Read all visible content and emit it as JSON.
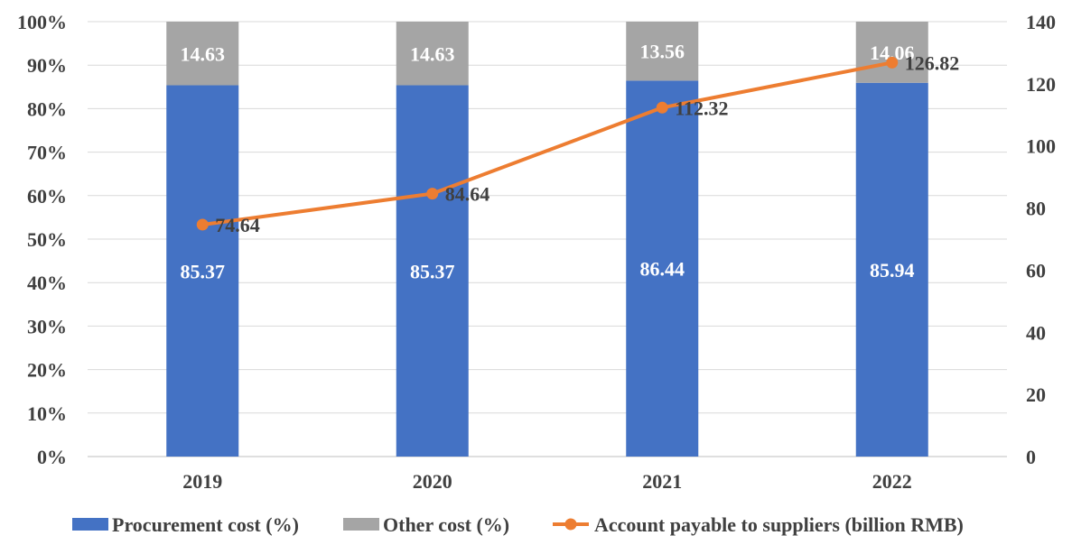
{
  "chart_data": {
    "type": "bar",
    "stacked": true,
    "categories": [
      "2019",
      "2020",
      "2021",
      "2022"
    ],
    "series": [
      {
        "name": "Procurement cost (%)",
        "kind": "bar",
        "axis": "left",
        "color": "#4472C4",
        "labelColor": "#FFFFFF",
        "values": [
          85.37,
          85.37,
          86.44,
          85.94
        ],
        "labels": [
          "85.37",
          "85.37",
          "86.44",
          "85.94"
        ]
      },
      {
        "name": "Other cost (%)",
        "kind": "bar",
        "axis": "left",
        "color": "#A5A5A5",
        "labelColor": "#FFFFFF",
        "values": [
          14.63,
          14.63,
          13.56,
          14.06
        ],
        "labels": [
          "14.63",
          "14.63",
          "13.56",
          "14.06"
        ]
      },
      {
        "name": "Account payable to suppliers (billion RMB)",
        "kind": "line",
        "axis": "right",
        "color": "#ED7D31",
        "labelColor": "#404040",
        "values": [
          74.64,
          84.64,
          112.32,
          126.82
        ],
        "labels": [
          "74.64",
          "84.64",
          "112.32",
          "126.82"
        ]
      }
    ],
    "y_left": {
      "ylim": [
        0,
        100
      ],
      "tick_labels": [
        "0%",
        "10%",
        "20%",
        "30%",
        "40%",
        "50%",
        "60%",
        "70%",
        "80%",
        "90%",
        "100%"
      ]
    },
    "y_right": {
      "ylim": [
        0,
        140
      ],
      "tick_labels": [
        "0",
        "20",
        "40",
        "60",
        "80",
        "100",
        "120",
        "140"
      ]
    },
    "grid": true,
    "legend_position": "bottom"
  }
}
